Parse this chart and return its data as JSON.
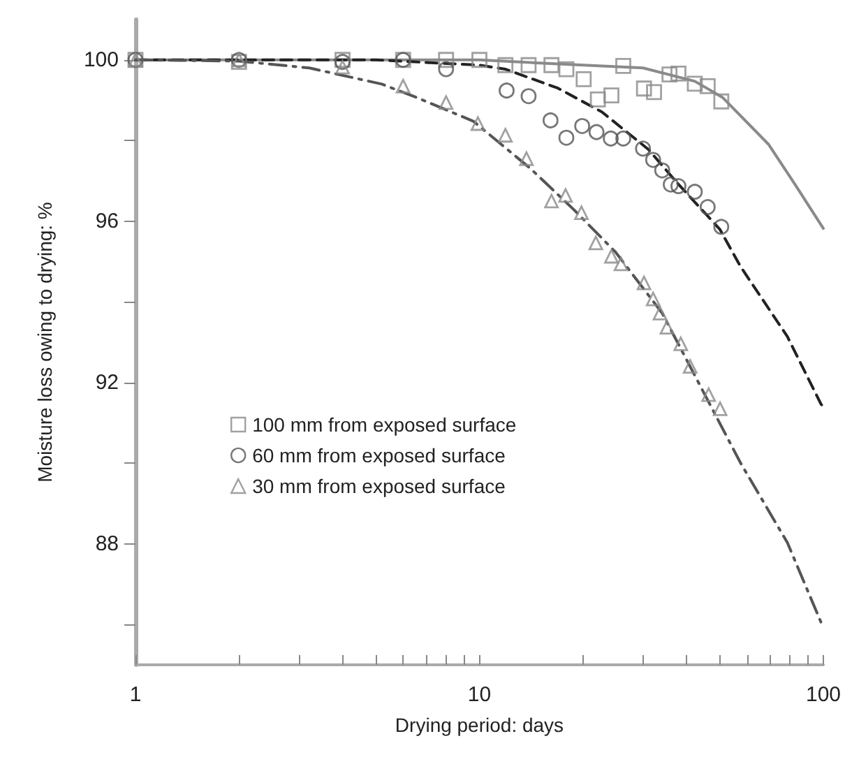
{
  "chart_data": {
    "type": "scatter",
    "xlabel": "Drying period: days",
    "ylabel": "Moisture loss owing to drying: %",
    "log": "x",
    "xlim": [
      1,
      100
    ],
    "ylim": [
      85,
      101
    ],
    "xticks": [
      1,
      {
        "value": 2,
        "label": null
      },
      {
        "value": 3,
        "label": null
      },
      {
        "value": 4,
        "label": null
      },
      {
        "value": 5,
        "label": null
      },
      {
        "value": 6,
        "label": null
      },
      {
        "value": 7,
        "label": null
      },
      {
        "value": 8,
        "label": null
      },
      {
        "value": 9,
        "label": null
      },
      10,
      {
        "value": 20,
        "label": null
      },
      {
        "value": 30,
        "label": null
      },
      {
        "value": 40,
        "label": null
      },
      {
        "value": 50,
        "label": null
      },
      {
        "value": 60,
        "label": null
      },
      {
        "value": 70,
        "label": null
      },
      {
        "value": 80,
        "label": null
      },
      {
        "value": 90,
        "label": null
      },
      100
    ],
    "yticks": [
      {
        "value": 86,
        "label": null
      },
      88,
      {
        "value": 90,
        "label": null
      },
      92,
      {
        "value": 94,
        "label": null
      },
      96,
      {
        "value": 98,
        "label": null
      },
      100
    ],
    "grid": false,
    "legend": "center left",
    "series": [
      {
        "name": "100 mm from exposed surface",
        "marker": "square",
        "color": "#8a8a8a",
        "x": [
          1,
          2,
          4,
          6,
          8,
          10,
          11.9,
          13.9,
          16.2,
          17.9,
          20.1,
          22.1,
          24.2,
          26.2,
          30.1,
          32.2,
          35.7,
          37.9,
          42.3,
          46.1,
          50.5
        ],
        "values": [
          100,
          99.95,
          100,
          100,
          100,
          100,
          99.87,
          99.87,
          99.87,
          99.77,
          99.52,
          99.02,
          99.12,
          99.85,
          99.29,
          99.2,
          99.64,
          99.66,
          99.41,
          99.35,
          98.97
        ]
      },
      {
        "name": "60 mm from exposed surface",
        "marker": "circle",
        "color": "#555555",
        "x": [
          1,
          2,
          4,
          6,
          8,
          12,
          13.9,
          16.1,
          17.9,
          19.9,
          21.9,
          24.1,
          26.2,
          29.9,
          32,
          34,
          36,
          37.9,
          42.3,
          46.1,
          50.5
        ],
        "values": [
          100,
          100,
          99.95,
          100,
          99.77,
          99.24,
          99.1,
          98.5,
          98.07,
          98.36,
          98.21,
          98.05,
          98.05,
          97.8,
          97.52,
          97.26,
          96.91,
          96.87,
          96.73,
          96.35,
          95.86
        ]
      },
      {
        "name": "30 mm from exposed surface",
        "marker": "triangle",
        "color": "#8a8a8a",
        "x": [
          1,
          2,
          4,
          6,
          8,
          9.9,
          11.9,
          13.7,
          16.2,
          17.8,
          19.8,
          21.8,
          24.2,
          25.8,
          30.1,
          32,
          33.5,
          35.1,
          38.5,
          41,
          46.4,
          50.1
        ],
        "values": [
          100,
          100,
          99.82,
          99.35,
          98.94,
          98.42,
          98.13,
          97.55,
          96.5,
          96.64,
          96.21,
          95.46,
          95.13,
          94.94,
          94.47,
          94.07,
          93.72,
          93.37,
          92.96,
          92.4,
          91.7,
          91.35
        ]
      },
      {
        "type": "line",
        "marker": "none",
        "line_style": "solid",
        "color": "#8a8a8a",
        "x": [
          1,
          10,
          16.9,
          29.9,
          42.3,
          50.9,
          69.4,
          83.5,
          100
        ],
        "values": [
          100,
          100,
          99.9,
          99.8,
          99.47,
          99.07,
          97.9,
          96.86,
          95.82
        ]
      },
      {
        "type": "line",
        "marker": "none",
        "line_style": "dashed",
        "color": "#222222",
        "x": [
          1,
          5,
          10,
          11.9,
          16.9,
          22.7,
          31,
          37.4,
          50,
          57.4,
          78.6,
          98.5,
          100
        ],
        "values": [
          100,
          100,
          99.87,
          99.77,
          99.3,
          98.71,
          97.78,
          96.97,
          95.8,
          94.88,
          93.14,
          91.46,
          91.4
        ]
      },
      {
        "type": "line",
        "marker": "none",
        "line_style": "dashdot",
        "color": "#555555",
        "x": [
          1,
          2,
          3.2,
          5.2,
          6.6,
          9.6,
          14.1,
          18.9,
          24.9,
          34,
          57.5,
          78.6,
          98.5,
          100
        ],
        "values": [
          100,
          99.97,
          99.8,
          99.4,
          99.06,
          98.48,
          97.3,
          96.27,
          95.23,
          93.72,
          90,
          88.03,
          86.05,
          85.95
        ]
      }
    ]
  }
}
